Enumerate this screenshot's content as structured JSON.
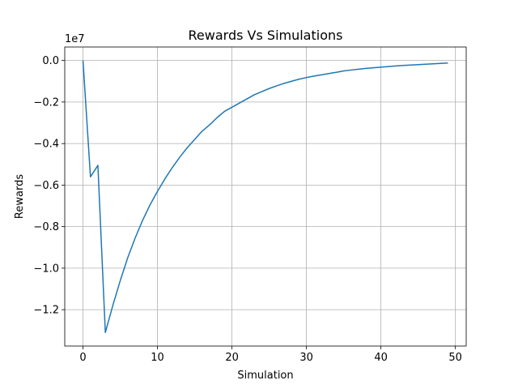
{
  "chart_data": {
    "type": "line",
    "title": "Rewards Vs Simulations",
    "xlabel": "Simulation",
    "ylabel": "Rewards",
    "y_offset_label": "1e7",
    "xlim": [
      -2.45,
      51.45
    ],
    "ylim": [
      -13.75,
      0.65
    ],
    "x_ticks": [
      0,
      10,
      20,
      30,
      40,
      50
    ],
    "x_tick_labels": [
      "0",
      "10",
      "20",
      "30",
      "40",
      "50"
    ],
    "y_ticks": [
      0.0,
      -2.0,
      -4.0,
      -6.0,
      -8.0,
      -10.0,
      -12.0
    ],
    "y_tick_labels": [
      "0.0",
      "−0.2",
      "−0.4",
      "−0.6",
      "−0.8",
      "−1.0",
      "−1.2"
    ],
    "y_units_note": "values in units of 1e6 (axis labels scaled by 1e7)",
    "grid": true,
    "colors": {
      "line": "#1f77b4",
      "grid": "#b0b0b0",
      "axes": "#000000"
    },
    "series": [
      {
        "x": [
          0,
          1,
          2,
          3,
          4,
          5,
          6,
          7,
          8,
          9,
          10,
          11,
          12,
          13,
          14,
          15,
          16,
          17,
          18,
          19,
          20,
          21,
          22,
          23,
          24,
          25,
          26,
          27,
          28,
          29,
          30,
          31,
          32,
          33,
          34,
          35,
          36,
          37,
          38,
          39,
          40,
          41,
          42,
          43,
          44,
          45,
          46,
          47,
          48,
          49
        ],
        "y": [
          0.0,
          -5.6,
          -5.05,
          -13.1,
          -11.8,
          -10.6,
          -9.5,
          -8.55,
          -7.7,
          -6.95,
          -6.3,
          -5.7,
          -5.15,
          -4.65,
          -4.2,
          -3.8,
          -3.4,
          -3.1,
          -2.75,
          -2.45,
          -2.25,
          -2.05,
          -1.85,
          -1.65,
          -1.5,
          -1.35,
          -1.22,
          -1.1,
          -1.0,
          -0.9,
          -0.82,
          -0.75,
          -0.69,
          -0.63,
          -0.57,
          -0.5,
          -0.46,
          -0.42,
          -0.38,
          -0.35,
          -0.32,
          -0.29,
          -0.26,
          -0.24,
          -0.22,
          -0.2,
          -0.18,
          -0.16,
          -0.14,
          -0.12
        ]
      }
    ]
  }
}
